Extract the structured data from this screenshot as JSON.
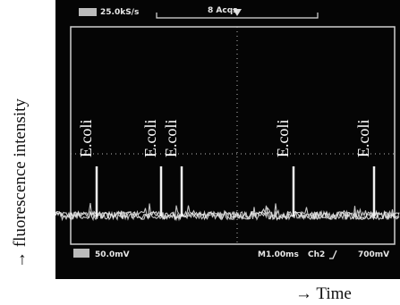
{
  "scope": {
    "header": {
      "sample_rate": "25.0kS/s",
      "acquisitions": "8 Acqs"
    },
    "footer": {
      "channel_scale": "50.0mV",
      "timebase": "M1.00ms",
      "trigger_channel": "Ch2",
      "trigger_level": "700mV"
    },
    "events": [
      "E.coli",
      "E.coli",
      "E.coli",
      "E.coli",
      "E.coli"
    ]
  },
  "axes": {
    "y_label": "→ fluorescence intensity",
    "x_label": "→ Time"
  }
}
